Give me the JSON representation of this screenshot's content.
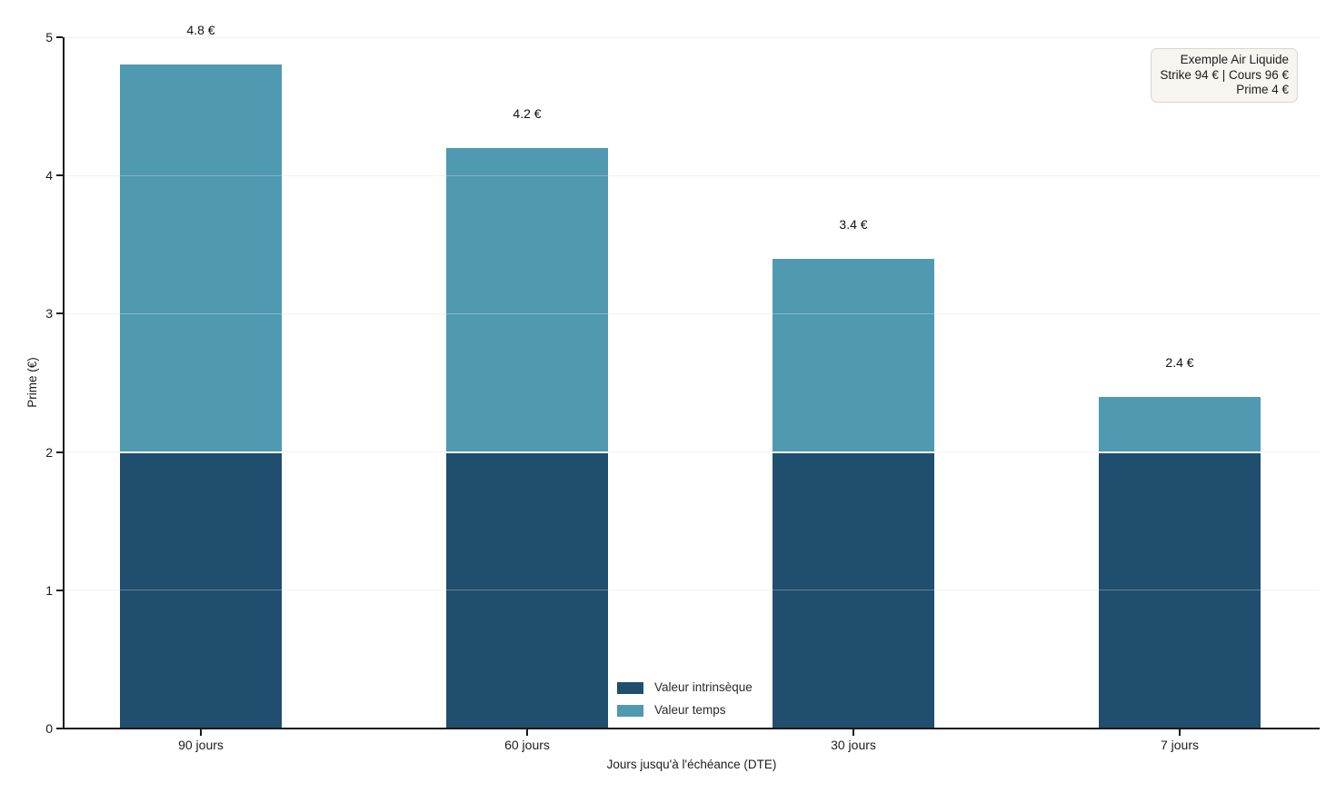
{
  "chart_data": {
    "type": "bar",
    "stacked": true,
    "categories": [
      "90 jours",
      "60 jours",
      "30 jours",
      "7 jours"
    ],
    "series": [
      {
        "name": "Valeur intrinsèque",
        "values": [
          2.0,
          2.0,
          2.0,
          2.0
        ],
        "color": "#1f4e6e"
      },
      {
        "name": "Valeur temps",
        "values": [
          2.8,
          2.2,
          1.4,
          0.4
        ],
        "color": "#4f99b1"
      }
    ],
    "totals": [
      4.8,
      4.2,
      3.4,
      2.4
    ],
    "total_labels": [
      "4.8 €",
      "4.2 €",
      "3.4 €",
      "2.4 €"
    ],
    "xlabel": "Jours jusqu'à l'échéance (DTE)",
    "ylabel": "Prime (€)",
    "ylim": [
      0,
      5
    ],
    "yticks": [
      0,
      1,
      2,
      3,
      4,
      5
    ],
    "ytick_labels": [
      "0",
      "1",
      "2",
      "3",
      "4",
      "5"
    ],
    "grid": "horizontal",
    "legend_position": "inside-bottom-center",
    "annotation": {
      "lines": [
        "Exemple Air Liquide",
        "Strike 94 € | Cours 96 €",
        "Prime 4 €"
      ]
    }
  }
}
